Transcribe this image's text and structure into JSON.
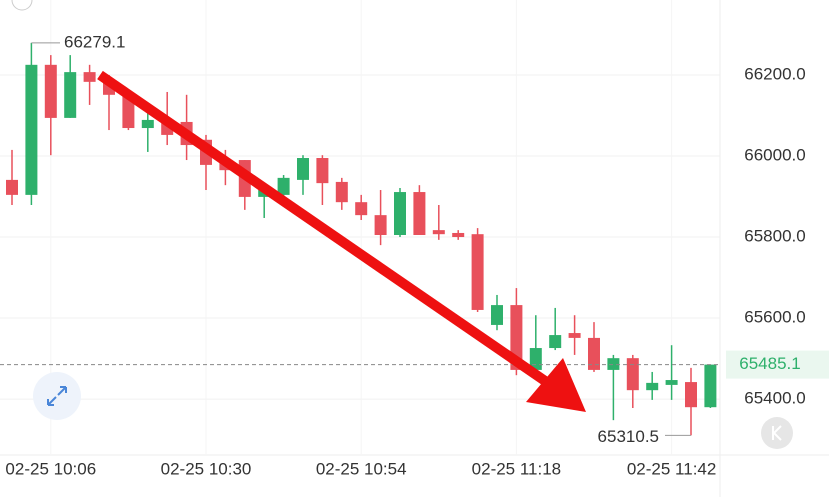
{
  "chart_data": {
    "type": "candlestick",
    "ylim": [
      65262,
      66385
    ],
    "yticks": [
      {
        "value": 65400,
        "label": "65400.0"
      },
      {
        "value": 65600,
        "label": "65600.0"
      },
      {
        "value": 65800,
        "label": "65800.0"
      },
      {
        "value": 66000,
        "label": "66000.0"
      },
      {
        "value": 66200,
        "label": "66200.0"
      }
    ],
    "categories": [
      null,
      null,
      "02-25 10:06",
      null,
      null,
      null,
      null,
      null,
      null,
      null,
      "02-25 10:30",
      null,
      null,
      null,
      null,
      null,
      null,
      null,
      "02-25 10:54",
      null,
      null,
      null,
      null,
      null,
      null,
      null,
      "02-25 11:18",
      null,
      null,
      null,
      null,
      null,
      null,
      null,
      "02-25 11:42",
      null,
      null
    ],
    "up_color": "#2eb06b",
    "down_color": "#e8505b",
    "series": [
      {
        "open": [
          65941,
          65904,
          66225,
          66094,
          66207,
          66183,
          66151,
          66069,
          66089,
          66084,
          66040,
          65990,
          65990,
          65899,
          65904,
          65941,
          65995,
          65936,
          65886,
          65854,
          65805,
          65911,
          65817,
          65810,
          65807,
          65583,
          65632,
          65472,
          65526,
          65563,
          65551,
          65472,
          65501,
          65422,
          65435,
          65442,
          65380
        ],
        "high": [
          66015,
          66279.1,
          66249,
          66249,
          66225,
          66200,
          66163,
          66126,
          66158,
          66151,
          66052,
          66015,
          65990,
          65928,
          65953,
          66002,
          66002,
          65946,
          65904,
          65916,
          65921,
          65928,
          65879,
          65817,
          65822,
          65657,
          65674,
          65607,
          65625,
          65607,
          65590,
          65509,
          65509,
          65467,
          65533,
          65477,
          65485.1
        ],
        "low": [
          65879,
          65879,
          66002,
          66094,
          66126,
          66064,
          66064,
          66010,
          66027,
          65990,
          65916,
          65928,
          65867,
          65847,
          65899,
          65904,
          65879,
          65867,
          65842,
          65780,
          65800,
          65805,
          65793,
          65793,
          65615,
          65570,
          65459,
          65447,
          65521,
          65509,
          65467,
          65348,
          65378,
          65398,
          65398,
          65310.5,
          65378
        ],
        "close": [
          65904,
          66225,
          66094,
          66207,
          66183,
          66151,
          66069,
          66089,
          66052,
          66027,
          65978,
          65965,
          65899,
          65916,
          65946,
          65995,
          65933,
          65886,
          65854,
          65805,
          65911,
          65805,
          65807,
          65800,
          65620,
          65632,
          65472,
          65526,
          65558,
          65551,
          65472,
          65501,
          65422,
          65440,
          65447,
          65380,
          65485.1
        ]
      }
    ],
    "high_marker": 66279.1,
    "low_marker": 65310.5,
    "last_price": 65485.1,
    "last_price_color": "#2eb06b"
  }
}
